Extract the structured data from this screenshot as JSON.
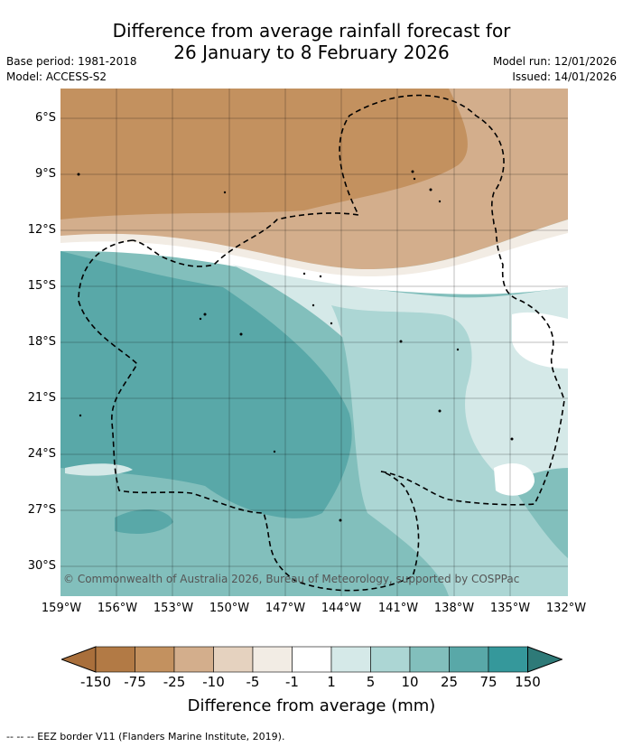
{
  "title_line1": "Difference from average rainfall forecast for",
  "title_line2": "26 January to 8 February 2026",
  "base_period": "Base period: 1981-2018",
  "model": "Model: ACCESS-S2",
  "model_run": "Model run: 12/01/2026",
  "issued": "Issued: 14/01/2026",
  "lat_labels": [
    "6°S",
    "9°S",
    "12°S",
    "15°S",
    "18°S",
    "21°S",
    "24°S",
    "27°S",
    "30°S"
  ],
  "lon_labels": [
    "159°W",
    "156°W",
    "153°W",
    "150°W",
    "147°W",
    "144°W",
    "141°W",
    "138°W",
    "135°W",
    "132°W"
  ],
  "copyright": "© Commonwealth of Australia 2026, Bureau of Meteorology, supported by COSPPac",
  "colorbar": {
    "labels": [
      "-150",
      "-75",
      "-25",
      "-10",
      "-5",
      "-1",
      "1",
      "5",
      "10",
      "25",
      "75",
      "150"
    ],
    "colors": [
      "#a96f3b",
      "#b27a45",
      "#c3915f",
      "#d3ae8c",
      "#e5d2bf",
      "#f2ece4",
      "#ffffff",
      "#d5e9e8",
      "#acd6d4",
      "#82bfbc",
      "#59a8a8",
      "#35989b",
      "#2e7a78"
    ],
    "title": "Difference from average (mm)"
  },
  "footnote": "-- -- -- EEZ border V11 (Flanders Marine Institute, 2019)."
}
